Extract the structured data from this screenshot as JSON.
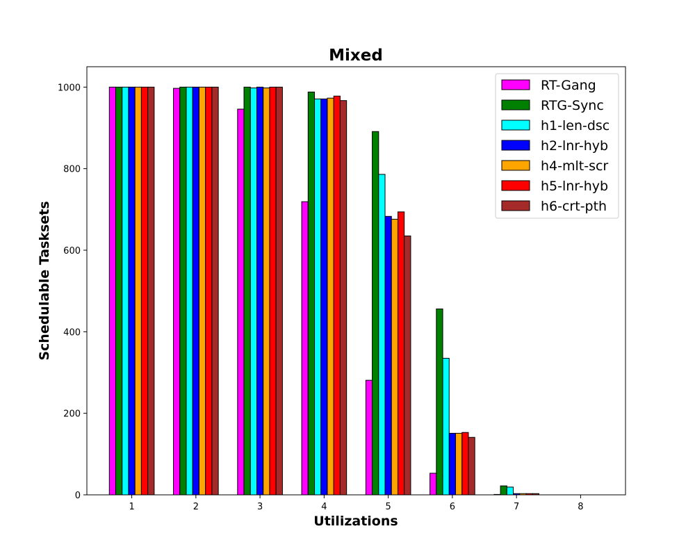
{
  "chart_data": {
    "type": "bar",
    "title": "Mixed",
    "xlabel": "Utilizations",
    "ylabel": "Schedulable Tasksets",
    "categories": [
      "1",
      "2",
      "3",
      "4",
      "5",
      "6",
      "7",
      "8"
    ],
    "ylim": [
      0,
      1050
    ],
    "yticks": [
      0,
      200,
      400,
      600,
      800,
      1000
    ],
    "grid": false,
    "legend_position": "top-right",
    "series": [
      {
        "name": "RT-Gang",
        "color": "#ff00ff",
        "values": [
          1000,
          997,
          946,
          719,
          281,
          53,
          1,
          0
        ]
      },
      {
        "name": "RTG-Sync",
        "color": "#008000",
        "values": [
          1000,
          1000,
          1000,
          988,
          891,
          456,
          22,
          0
        ]
      },
      {
        "name": "h1-len-dsc",
        "color": "#00ffff",
        "values": [
          1000,
          1000,
          998,
          971,
          786,
          335,
          19,
          0
        ]
      },
      {
        "name": "h2-lnr-hyb",
        "color": "#0000ff",
        "values": [
          1000,
          1000,
          1000,
          971,
          683,
          151,
          3,
          0
        ]
      },
      {
        "name": "h4-mlt-scr",
        "color": "#ffa500",
        "values": [
          1000,
          1000,
          998,
          973,
          676,
          151,
          3,
          0
        ]
      },
      {
        "name": "h5-lnr-hyb",
        "color": "#ff0000",
        "values": [
          1000,
          1000,
          1000,
          978,
          694,
          153,
          3,
          0
        ]
      },
      {
        "name": "h6-crt-pth",
        "color": "#a52a2a",
        "values": [
          1000,
          1000,
          1000,
          967,
          635,
          141,
          3,
          0
        ]
      }
    ]
  }
}
